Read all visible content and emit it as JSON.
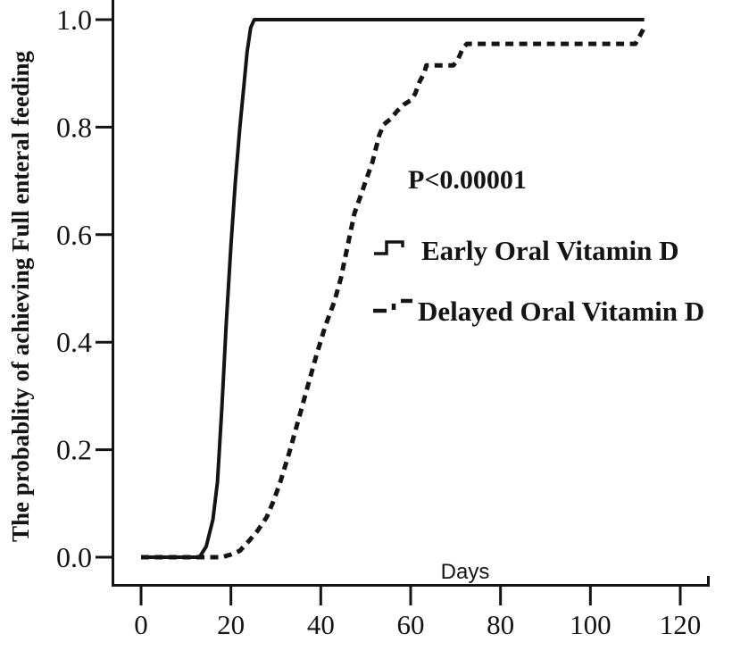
{
  "figure": {
    "p_value_annotation": "P<0.00001",
    "x_axis_label": "Days",
    "x_axis_label_color": "#dd1111",
    "y_axis_label": "The probablity of achieving Full enteral feeding",
    "curve_color": "#141414",
    "background_color": "#ffffff"
  },
  "chart_data": {
    "type": "line",
    "title": "",
    "xlabel": "Days",
    "ylabel": "The probablity of achieving Full enteral feeding",
    "xlim": [
      0,
      120
    ],
    "ylim": [
      0.0,
      1.0
    ],
    "x_ticks": [
      0,
      20,
      40,
      60,
      80,
      100,
      120
    ],
    "x_tick_labels": [
      "0",
      "20",
      "40",
      "60",
      "80",
      "100",
      "120"
    ],
    "y_ticks": [
      0.0,
      0.2,
      0.4,
      0.6,
      0.8,
      1.0
    ],
    "y_tick_labels": [
      "0.0",
      "0.2",
      "0.4",
      "0.6",
      "0.8",
      "1.0"
    ],
    "grid": false,
    "annotation": "P<0.00001",
    "legend_position": "center-right",
    "legend": [
      {
        "name": "Early Oral Vitamin D",
        "style": "solid"
      },
      {
        "name": "Delayed Oral Vitamin D",
        "style": "dashed"
      }
    ],
    "series": [
      {
        "name": "Early Oral Vitamin D",
        "style": "solid",
        "points": [
          [
            0,
            0
          ],
          [
            13,
            0
          ],
          [
            14.5,
            0.02
          ],
          [
            16,
            0.07
          ],
          [
            17,
            0.14
          ],
          [
            18,
            0.28
          ],
          [
            19,
            0.44
          ],
          [
            20,
            0.58
          ],
          [
            21,
            0.7
          ],
          [
            22,
            0.8
          ],
          [
            22.8,
            0.87
          ],
          [
            23.6,
            0.94
          ],
          [
            24.4,
            0.985
          ],
          [
            25.2,
            1.0
          ],
          [
            112,
            1.0
          ]
        ]
      },
      {
        "name": "Delayed Oral Vitamin D",
        "style": "dashed",
        "points": [
          [
            0,
            0
          ],
          [
            18,
            0
          ],
          [
            20,
            0.005
          ],
          [
            22,
            0.012
          ],
          [
            24,
            0.03
          ],
          [
            26,
            0.05
          ],
          [
            28,
            0.075
          ],
          [
            29.5,
            0.105
          ],
          [
            31,
            0.14
          ],
          [
            33,
            0.195
          ],
          [
            35,
            0.255
          ],
          [
            37,
            0.315
          ],
          [
            39,
            0.375
          ],
          [
            41,
            0.43
          ],
          [
            43,
            0.475
          ],
          [
            44.5,
            0.52
          ],
          [
            46,
            0.58
          ],
          [
            47.5,
            0.64
          ],
          [
            49,
            0.675
          ],
          [
            50,
            0.7
          ],
          [
            51.5,
            0.735
          ],
          [
            53,
            0.785
          ],
          [
            54,
            0.805
          ],
          [
            55.5,
            0.815
          ],
          [
            57,
            0.83
          ],
          [
            58.5,
            0.842
          ],
          [
            60,
            0.85
          ],
          [
            61,
            0.862
          ],
          [
            62,
            0.885
          ],
          [
            63,
            0.9
          ],
          [
            63.5,
            0.915
          ],
          [
            69.5,
            0.915
          ],
          [
            70.5,
            0.925
          ],
          [
            71.5,
            0.945
          ],
          [
            72.5,
            0.955
          ],
          [
            110,
            0.955
          ],
          [
            111,
            0.97
          ],
          [
            112.3,
            0.99
          ]
        ]
      }
    ]
  }
}
